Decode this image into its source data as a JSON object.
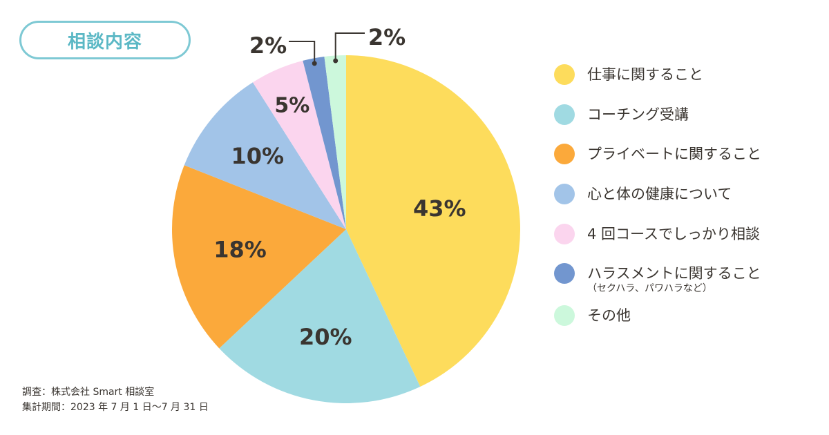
{
  "title": "相談内容",
  "chart_data": {
    "type": "pie",
    "title": "相談内容",
    "slices": [
      {
        "label": "仕事に関すること",
        "sub": "",
        "value": 43,
        "value_label": "43%",
        "color": "#fddc5c"
      },
      {
        "label": "コーチング受講",
        "sub": "",
        "value": 20,
        "value_label": "20%",
        "color": "#a0dae2"
      },
      {
        "label": "プライベートに関すること",
        "sub": "",
        "value": 18,
        "value_label": "18%",
        "color": "#fba93b"
      },
      {
        "label": "心と体の健康について",
        "sub": "",
        "value": 10,
        "value_label": "10%",
        "color": "#a2c4e8"
      },
      {
        "label": "4 回コースでしっかり相談",
        "sub": "",
        "value": 5,
        "value_label": "5%",
        "color": "#fbd5ee"
      },
      {
        "label": "ハラスメントに関すること",
        "sub": "（セクハラ、パワハラなど）",
        "value": 2,
        "value_label": "2%",
        "color": "#7296cf"
      },
      {
        "label": "その他",
        "sub": "",
        "value": 2,
        "value_label": "2%",
        "color": "#ccf8dc"
      }
    ],
    "legend_position": "right"
  },
  "footnote": {
    "survey": "調査：株式会社 Smart 相談室",
    "period": "集計期間：2023 年 7 月 1 日〜7 月 31 日"
  }
}
